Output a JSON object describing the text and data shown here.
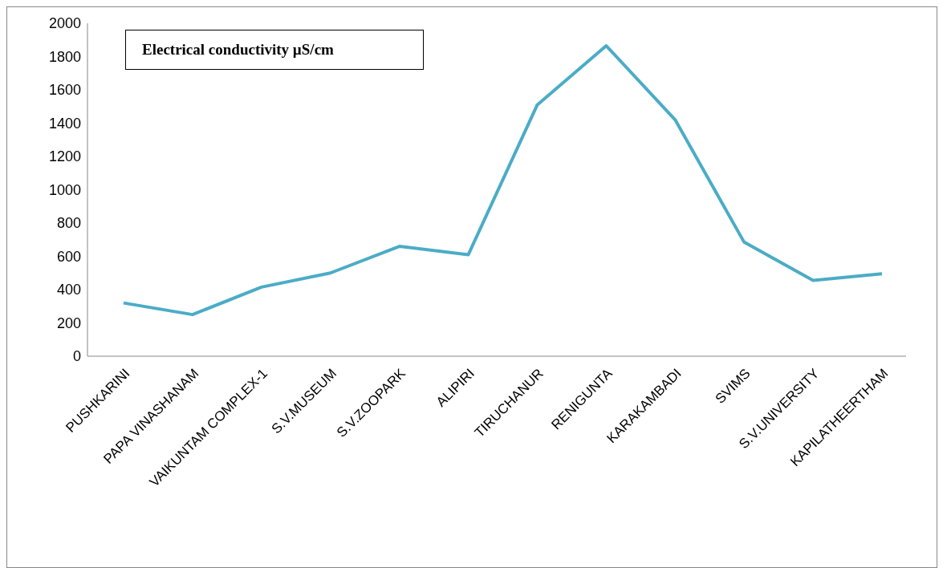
{
  "chart_data": {
    "type": "line",
    "title": "Electrical conductivity µS/cm",
    "categories": [
      "PUSHKARINI",
      "PAPA VINASHANAM",
      "VAIKUNTAM COMPLEX-1",
      "S.V.MUSEUM",
      "S.V.ZOOPARK",
      "ALIPIRI",
      "TIRUCHANUR",
      "RENIGUNTA",
      "KARAKAMBADI",
      "SVIMS",
      "S.V.UNIVERSITY",
      "KAPILATHEERTHAM"
    ],
    "series": [
      {
        "color": "#4bacc6",
        "values": [
          320,
          250,
          415,
          500,
          660,
          610,
          1510,
          1865,
          1420,
          685,
          455,
          495
        ]
      }
    ],
    "ylim": [
      0,
      2000
    ],
    "yticks": [
      0,
      200,
      400,
      600,
      800,
      1000,
      1200,
      1400,
      1600,
      1800,
      2000
    ],
    "grid": false,
    "legend": false,
    "marker": "none",
    "line_style": "solid"
  }
}
